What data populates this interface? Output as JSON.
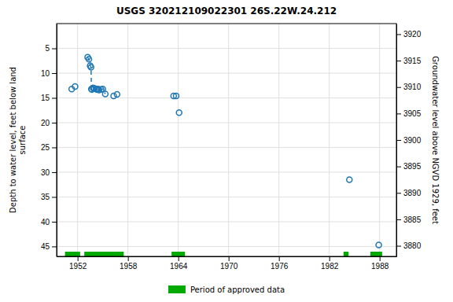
{
  "chart_data": {
    "type": "scatter",
    "title": "USGS 320212109022301 26S.22W.24.212",
    "y_label": "Depth to water level, feet below land\nsurface",
    "y2_label": "Groundwater level above NGVD 1929, feet",
    "xlim": [
      1949.5,
      1990.0
    ],
    "xticks": [
      1952,
      1958,
      1964,
      1970,
      1976,
      1982,
      1988
    ],
    "ylim": [
      47,
      0
    ],
    "yticks": [
      5,
      10,
      15,
      20,
      25,
      30,
      35,
      40,
      45
    ],
    "y2lim": [
      3878,
      3922
    ],
    "y2ticks": [
      3880,
      3885,
      3890,
      3895,
      3900,
      3905,
      3910,
      3915,
      3920
    ],
    "grid": true,
    "legend": "bottom",
    "series": [
      {
        "type": "scatter",
        "marker": "circle",
        "x": [
          1951.3,
          1951.7,
          1953.2,
          1953.35,
          1953.5,
          1953.6,
          1953.65,
          1953.7,
          1953.85,
          1954.0,
          1954.2,
          1954.3,
          1954.45,
          1954.55,
          1954.8,
          1955.0,
          1955.3,
          1956.3,
          1956.7,
          1963.45,
          1963.75,
          1964.1,
          1984.4,
          1987.9
        ],
        "values": [
          13.2,
          12.7,
          6.8,
          7.2,
          8.5,
          8.8,
          13.2,
          13.3,
          13.0,
          13.1,
          13.2,
          13.3,
          13.2,
          13.4,
          13.3,
          13.2,
          14.2,
          14.6,
          14.3,
          14.6,
          14.6,
          18.0,
          31.5,
          44.7
        ]
      },
      {
        "type": "line",
        "line_style": "dashed",
        "x": [
          1953.2,
          1953.35,
          1953.5,
          1953.6,
          1953.65,
          1953.7,
          1953.85,
          1954.0,
          1954.2,
          1954.3,
          1954.45,
          1954.55,
          1954.8,
          1955.0,
          1955.3
        ],
        "values": [
          6.8,
          7.2,
          8.5,
          8.8,
          13.2,
          13.3,
          13.0,
          13.1,
          13.2,
          13.3,
          13.2,
          13.4,
          13.3,
          13.2,
          14.2
        ]
      },
      {
        "type": "bar",
        "name": "Period of approved data",
        "color": "#00aa00",
        "start": [
          1950.5,
          1952.8,
          1963.2,
          1983.7,
          1986.9
        ],
        "end": [
          1952.3,
          1957.5,
          1964.8,
          1984.3,
          1988.3
        ]
      }
    ]
  }
}
